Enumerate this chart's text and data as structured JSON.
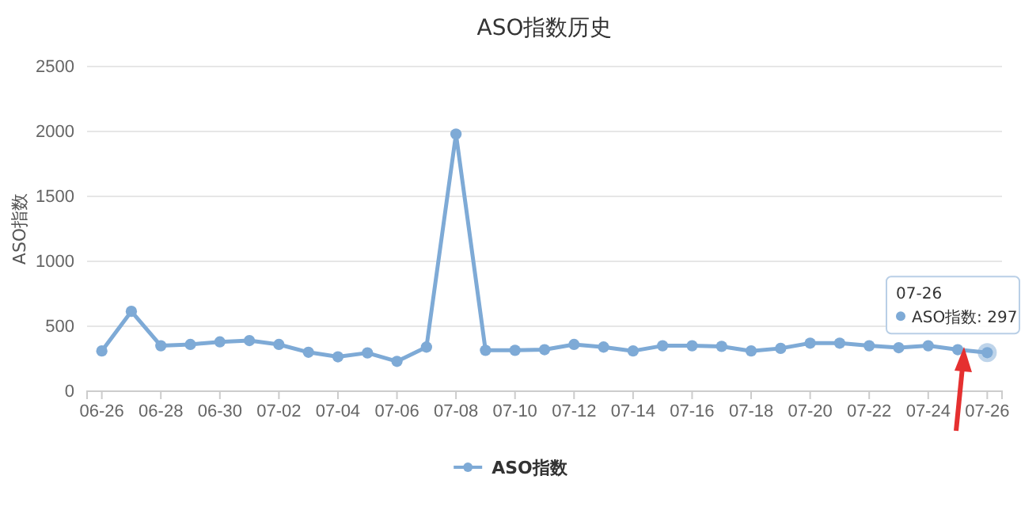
{
  "chart_data": {
    "type": "line",
    "title": "ASO指数历史",
    "ylabel": "ASO指数",
    "categories": [
      "06-26",
      null,
      "06-28",
      null,
      "06-30",
      null,
      "07-02",
      null,
      "07-04",
      null,
      "07-06",
      null,
      "07-08",
      null,
      "07-10",
      null,
      "07-12",
      null,
      "07-14",
      null,
      "07-16",
      null,
      "07-18",
      null,
      "07-20",
      null,
      "07-22",
      null,
      "07-24",
      null,
      "07-26"
    ],
    "series": [
      {
        "name": "ASO指数",
        "color": "#7eaad6",
        "values": [
          310,
          615,
          350,
          360,
          380,
          390,
          360,
          300,
          265,
          295,
          230,
          340,
          1980,
          315,
          315,
          320,
          360,
          340,
          310,
          350,
          350,
          345,
          310,
          330,
          370,
          370,
          350,
          335,
          350,
          320,
          297
        ]
      }
    ],
    "ylim": [
      0,
      2500
    ],
    "yticks": [
      0,
      500,
      1000,
      1500,
      2000,
      2500
    ],
    "grid": "y",
    "legend": "bottom",
    "marker": "circle",
    "line_style": "solid",
    "annotations": [
      {
        "text": "07-26\nASO指数: 297",
        "x": "07-26",
        "y": 297
      }
    ]
  }
}
